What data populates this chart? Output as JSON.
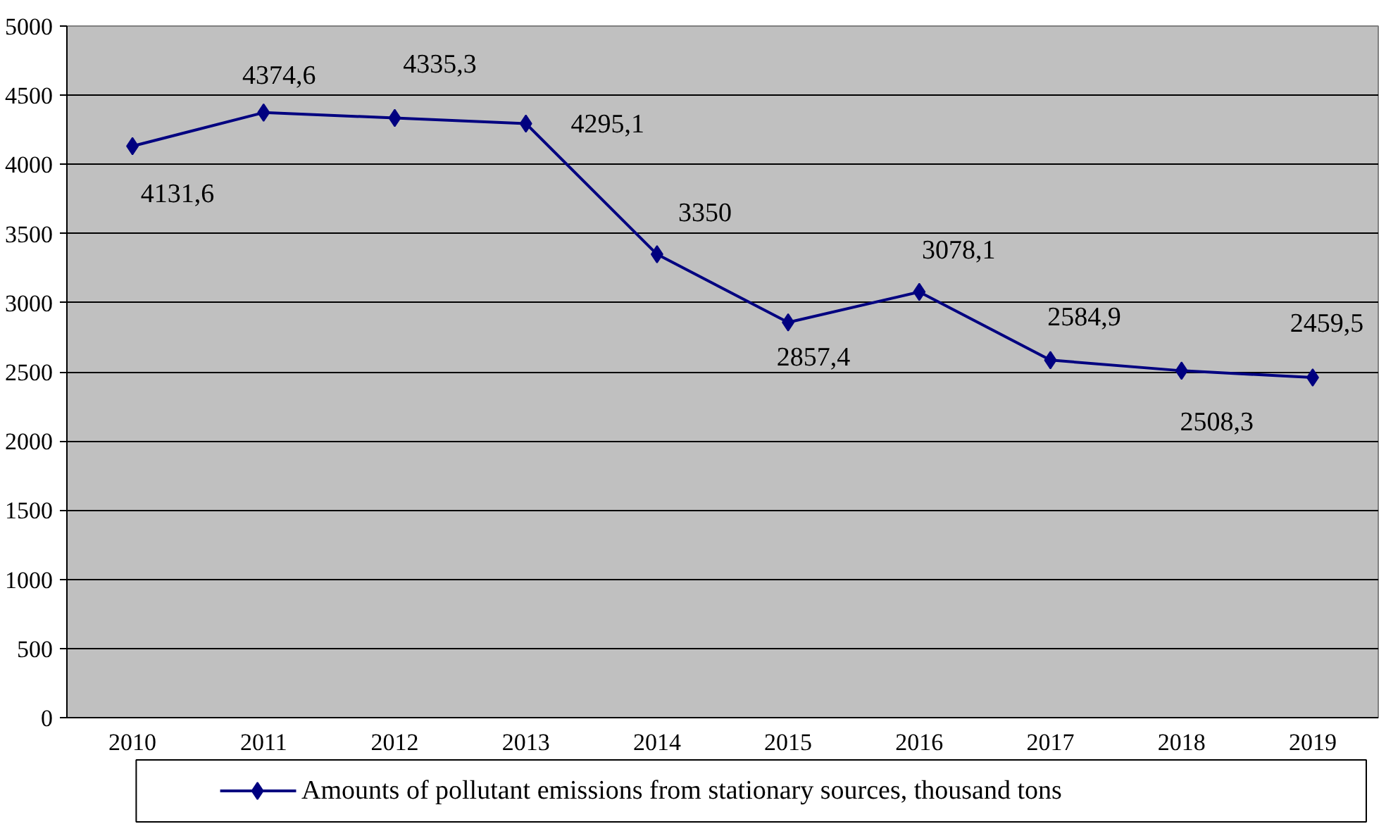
{
  "chart_data": {
    "type": "line",
    "categories": [
      "2010",
      "2011",
      "2012",
      "2013",
      "2014",
      "2015",
      "2016",
      "2017",
      "2018",
      "2019"
    ],
    "series": [
      {
        "name": "Amounts of pollutant emissions from stationary sources, thousand tons",
        "color": "#000080",
        "values": [
          4131.6,
          4374.6,
          4335.3,
          4295.1,
          3350,
          2857.4,
          3078.1,
          2584.9,
          2508.3,
          2459.5
        ],
        "value_labels": [
          "4131,6",
          "4374,6",
          "4335,3",
          "4295,1",
          "3350",
          "2857,4",
          "3078,1",
          "2584,9",
          "2508,3",
          "2459,5"
        ]
      }
    ],
    "ylim": [
      0,
      5000
    ],
    "yticks": [
      0,
      500,
      1000,
      1500,
      2000,
      2500,
      3000,
      3500,
      4000,
      4500,
      5000
    ],
    "grid": "y",
    "legend": "bottom",
    "marker": "diamond",
    "line_style": "solid"
  }
}
